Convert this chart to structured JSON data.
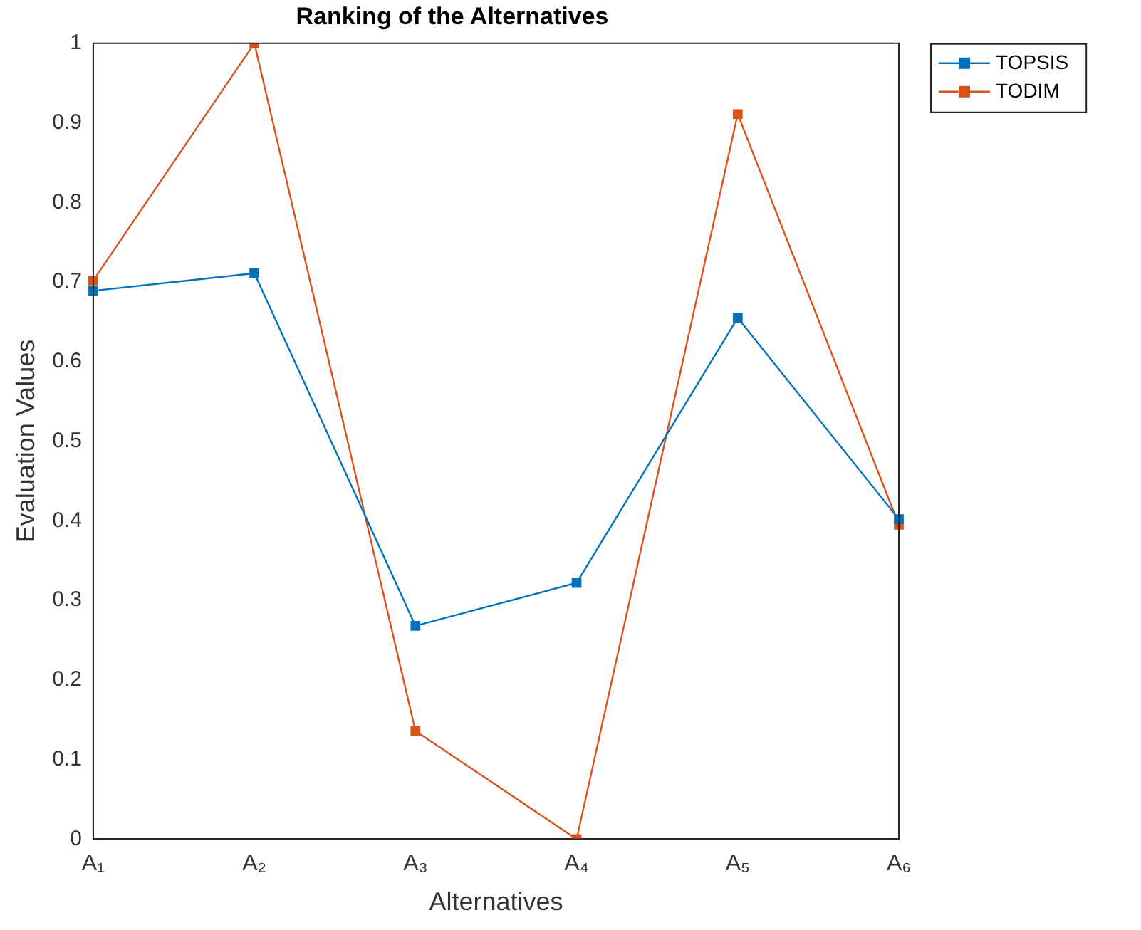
{
  "chart_data": {
    "type": "line",
    "title": "Ranking of the Alternatives",
    "xlabel": "Alternatives",
    "ylabel": "Evaluation Values",
    "categories": [
      "A₁",
      "A₂",
      "A₃",
      "A₄",
      "A₅",
      "A₆"
    ],
    "series": [
      {
        "name": "TOPSIS",
        "color": "#0072bd",
        "values": [
          0.689,
          0.711,
          0.268,
          0.322,
          0.655,
          0.402
        ]
      },
      {
        "name": "TODIM",
        "color": "#d95319",
        "values": [
          0.702,
          1.0,
          0.136,
          0,
          0.911,
          0.395
        ]
      }
    ],
    "ylim": [
      0,
      1
    ],
    "yticks": [
      0,
      0.1,
      0.2,
      0.3,
      0.4,
      0.5,
      0.6,
      0.7,
      0.8,
      0.9,
      1
    ],
    "grid": false,
    "legend": "top right",
    "marker": "square",
    "line_style": "solid"
  }
}
